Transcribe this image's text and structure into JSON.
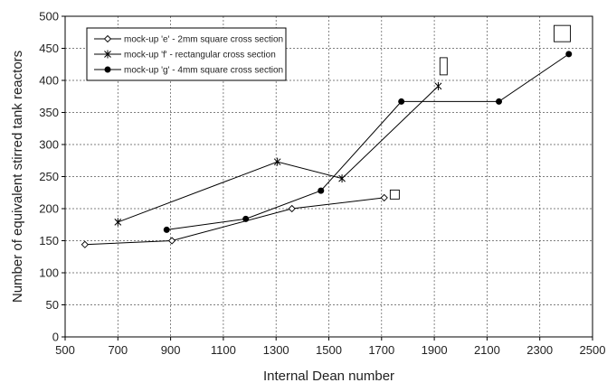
{
  "chart_data": {
    "type": "line",
    "xlabel": "Internal Dean number",
    "ylabel": "Number of equivalent stirred tank reactors",
    "xlim": [
      500,
      2500
    ],
    "ylim": [
      0,
      500
    ],
    "x_ticks": [
      500,
      700,
      900,
      1100,
      1300,
      1500,
      1700,
      1900,
      2100,
      2300,
      2500
    ],
    "y_ticks": [
      0,
      50,
      100,
      150,
      200,
      250,
      300,
      350,
      400,
      450,
      500
    ],
    "grid": "dashed",
    "legend_position": "top-left",
    "series": [
      {
        "name": "mock-up 'e' - 2mm square cross section",
        "marker": "diamond-open",
        "points": [
          [
            575,
            144
          ],
          [
            905,
            150
          ],
          [
            1360,
            200
          ],
          [
            1710,
            217
          ]
        ]
      },
      {
        "name": "mock-up 'f' - rectangular cross section",
        "marker": "star",
        "points": [
          [
            700,
            179
          ],
          [
            1305,
            273
          ],
          [
            1550,
            247
          ],
          [
            1915,
            391
          ]
        ]
      },
      {
        "name": "mock-up 'g' - 4mm square cross section",
        "marker": "circle-filled",
        "points": [
          [
            885,
            167
          ],
          [
            1185,
            184
          ],
          [
            1470,
            228
          ],
          [
            1775,
            367
          ],
          [
            2145,
            367
          ],
          [
            2410,
            441
          ]
        ]
      }
    ],
    "annotations": [
      {
        "shape": "square-small",
        "x": 1750,
        "y": 222
      },
      {
        "shape": "tall-rectangle",
        "x": 1935,
        "y": 422
      },
      {
        "shape": "square-large",
        "x": 2385,
        "y": 473
      }
    ]
  }
}
